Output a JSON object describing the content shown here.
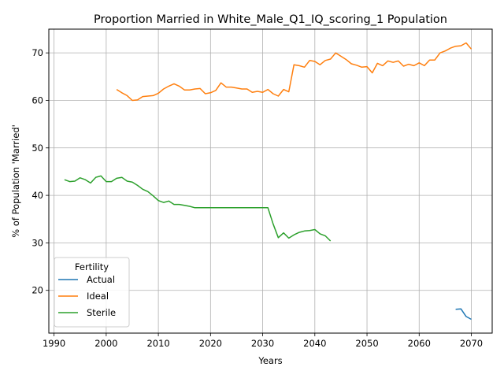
{
  "chart_data": {
    "type": "line",
    "title": "Proportion Married in White_Male_Q1_IQ_scoring_1 Population",
    "xlabel": "Years",
    "ylabel": "% of Population 'Married'",
    "xlim": [
      1989,
      2074
    ],
    "ylim": [
      11,
      75
    ],
    "xticks": [
      1990,
      2000,
      2010,
      2020,
      2030,
      2040,
      2050,
      2060,
      2070
    ],
    "yticks": [
      20,
      30,
      40,
      50,
      60,
      70
    ],
    "grid": true,
    "legend": {
      "title": "Fertility",
      "placement": "lower-left"
    },
    "series": [
      {
        "name": "Actual",
        "color": "#1f77b4",
        "x": [
          2067,
          2068,
          2069,
          2070
        ],
        "y": [
          16.0,
          16.1,
          14.5,
          13.9
        ]
      },
      {
        "name": "Ideal",
        "color": "#ff7f0e",
        "x": [
          2002,
          2003,
          2004,
          2005,
          2006,
          2007,
          2008,
          2009,
          2010,
          2011,
          2012,
          2013,
          2014,
          2015,
          2016,
          2017,
          2018,
          2019,
          2020,
          2021,
          2022,
          2023,
          2024,
          2025,
          2026,
          2027,
          2028,
          2029,
          2030,
          2031,
          2032,
          2033,
          2034,
          2035,
          2036,
          2037,
          2038,
          2039,
          2040,
          2041,
          2042,
          2043,
          2044,
          2045,
          2046,
          2047,
          2048,
          2049,
          2050,
          2051,
          2052,
          2053,
          2054,
          2055,
          2056,
          2057,
          2058,
          2059,
          2060,
          2061,
          2062,
          2063,
          2064,
          2065,
          2066,
          2067,
          2068,
          2069,
          2070
        ],
        "y": [
          62.3,
          61.6,
          61.0,
          60.0,
          60.1,
          60.8,
          60.9,
          61.0,
          61.5,
          62.4,
          63.0,
          63.5,
          63.0,
          62.2,
          62.2,
          62.4,
          62.5,
          61.4,
          61.6,
          62.1,
          63.7,
          62.8,
          62.8,
          62.6,
          62.4,
          62.4,
          61.7,
          61.9,
          61.7,
          62.3,
          61.4,
          60.9,
          62.3,
          61.8,
          67.5,
          67.3,
          67.0,
          68.4,
          68.2,
          67.5,
          68.4,
          68.7,
          70.0,
          69.3,
          68.6,
          67.7,
          67.4,
          67.0,
          67.1,
          65.8,
          67.8,
          67.3,
          68.3,
          68.0,
          68.3,
          67.2,
          67.6,
          67.3,
          67.9,
          67.3,
          68.5,
          68.5,
          70.0,
          70.4,
          71.0,
          71.4,
          71.5,
          72.1,
          70.8
        ]
      },
      {
        "name": "Sterile",
        "color": "#2ca02c",
        "x": [
          1992,
          1993,
          1994,
          1995,
          1996,
          1997,
          1998,
          1999,
          2000,
          2001,
          2002,
          2003,
          2004,
          2005,
          2006,
          2007,
          2008,
          2009,
          2010,
          2011,
          2012,
          2013,
          2014,
          2015,
          2016,
          2017,
          2018,
          2019,
          2020,
          2021,
          2022,
          2023,
          2024,
          2025,
          2026,
          2027,
          2028,
          2029,
          2030,
          2031,
          2032,
          2033,
          2034,
          2035,
          2036,
          2037,
          2038,
          2039,
          2040,
          2041,
          2042,
          2043
        ],
        "y": [
          43.3,
          42.9,
          43.0,
          43.7,
          43.3,
          42.6,
          43.8,
          44.1,
          42.9,
          42.9,
          43.6,
          43.8,
          43.0,
          42.8,
          42.1,
          41.3,
          40.8,
          39.9,
          38.9,
          38.5,
          38.8,
          38.1,
          38.1,
          37.9,
          37.7,
          37.4,
          37.4,
          37.4,
          37.4,
          37.4,
          37.4,
          37.4,
          37.4,
          37.4,
          37.4,
          37.4,
          37.4,
          37.4,
          37.4,
          37.4,
          34.0,
          31.1,
          32.1,
          31.0,
          31.7,
          32.2,
          32.5,
          32.6,
          32.8,
          31.9,
          31.5,
          30.4
        ]
      }
    ]
  }
}
